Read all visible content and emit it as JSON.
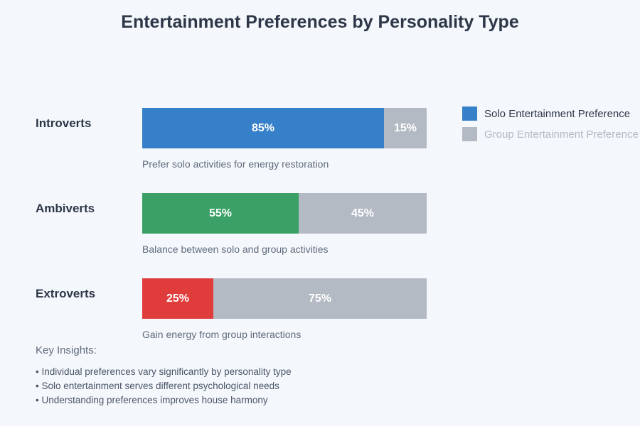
{
  "title": "Entertainment Preferences by Personality Type",
  "colors": {
    "background": "#f4f7fb",
    "solo_introverts": "#3580c8",
    "solo_ambiverts": "#3aa065",
    "solo_extroverts": "#e03c3c",
    "group_gray": "#b4bac4",
    "title_text": "#2d3748",
    "caption_text": "#5f6b7c",
    "legend_muted_text": "#b3bac4"
  },
  "chart_data": {
    "type": "bar",
    "orientation": "horizontal-stacked",
    "title": "Entertainment Preferences by Personality Type",
    "categories": [
      "Introverts",
      "Ambiverts",
      "Extroverts"
    ],
    "series": [
      {
        "name": "Solo Entertainment Preference",
        "values": [
          85,
          55,
          25
        ]
      },
      {
        "name": "Group Entertainment Preference",
        "values": [
          15,
          45,
          75
        ]
      }
    ],
    "value_format": "percent",
    "xlim": [
      0,
      100
    ],
    "grid": false,
    "legend_position": "top-right",
    "annotations": [
      "Prefer solo activities for energy restoration",
      "Balance between solo and group activities",
      "Gain energy from group interactions"
    ]
  },
  "rows": [
    {
      "label": "Introverts",
      "caption": "Prefer solo activities for energy restoration",
      "solo": {
        "value": 85,
        "label": "85%",
        "color": "#3580c8"
      },
      "group": {
        "value": 15,
        "label": "15%",
        "color": "#b4bac4"
      }
    },
    {
      "label": "Ambiverts",
      "caption": "Balance between solo and group activities",
      "solo": {
        "value": 55,
        "label": "55%",
        "color": "#3aa065"
      },
      "group": {
        "value": 45,
        "label": "45%",
        "color": "#b4bac4"
      }
    },
    {
      "label": "Extroverts",
      "caption": "Gain energy from group interactions",
      "solo": {
        "value": 25,
        "label": "25%",
        "color": "#e03c3c"
      },
      "group": {
        "value": 75,
        "label": "75%",
        "color": "#b4bac4"
      }
    }
  ],
  "legend": {
    "items": [
      {
        "label": "Solo Entertainment Preference",
        "color": "#3580c8"
      },
      {
        "label": "Group Entertainment Preference",
        "color": "#b4bac4"
      }
    ]
  },
  "insights": {
    "heading": "Key Insights:",
    "bullets": [
      "• Individual preferences vary significantly by personality type",
      "• Solo entertainment serves different psychological needs",
      "• Understanding preferences improves house harmony"
    ]
  }
}
